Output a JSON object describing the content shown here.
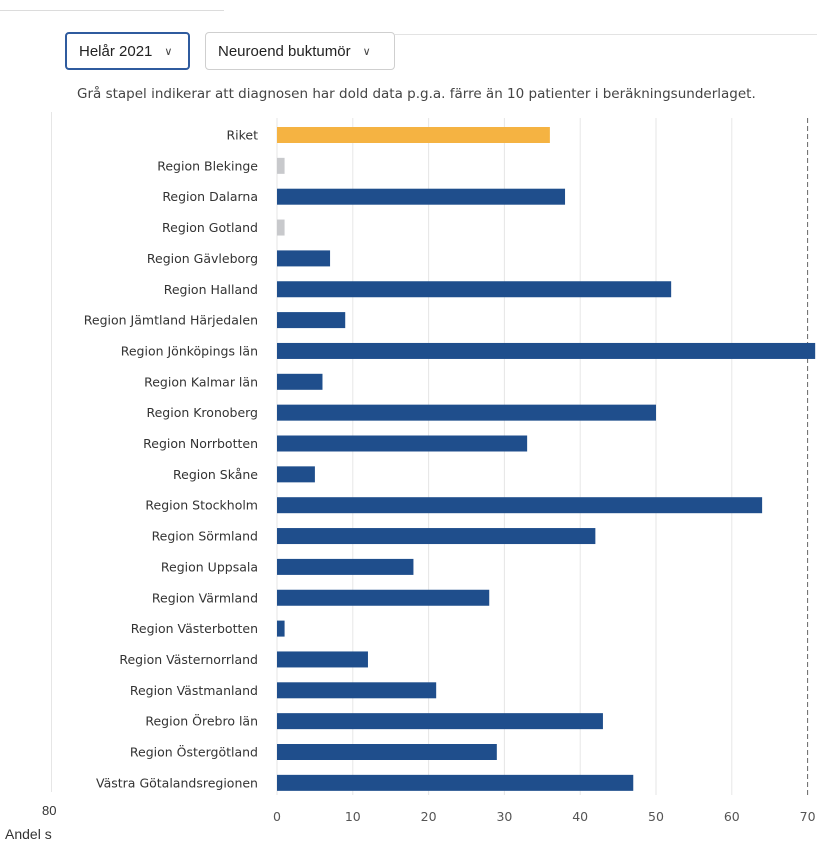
{
  "filters": {
    "period": "Helår 2021",
    "diagnosis": "Neuroend buktumör"
  },
  "note": "Grå stapel indikerar att diagnosen har dold data p.g.a. färre än 10 patienter i beräkningsunderlaget.",
  "fragments": {
    "left_number": "80",
    "left_label": "Andel s"
  },
  "colors": {
    "national": "#f5b342",
    "region": "#1f4e8c",
    "hidden": "#c8c9cc",
    "grid": "#e6e6e6",
    "reference_line": "#666666"
  },
  "chart_data": {
    "type": "bar",
    "orientation": "horizontal",
    "categories": [
      "Riket",
      "Region Blekinge",
      "Region Dalarna",
      "Region Gotland",
      "Region Gävleborg",
      "Region Halland",
      "Region Jämtland Härjedalen",
      "Region Jönköpings län",
      "Region Kalmar län",
      "Region Kronoberg",
      "Region Norrbotten",
      "Region Skåne",
      "Region Stockholm",
      "Region Sörmland",
      "Region Uppsala",
      "Region Värmland",
      "Region Västerbotten",
      "Region Västernorrland",
      "Region Västmanland",
      "Region Örebro län",
      "Region Östergötland",
      "Västra Götalandsregionen"
    ],
    "values": [
      36,
      1,
      38,
      1,
      7,
      52,
      9,
      71,
      6,
      50,
      33,
      5,
      64,
      42,
      18,
      28,
      1,
      12,
      21,
      43,
      29,
      47
    ],
    "bar_kind": [
      "national",
      "hidden",
      "region",
      "hidden",
      "region",
      "region",
      "region",
      "region",
      "region",
      "region",
      "region",
      "region",
      "region",
      "region",
      "region",
      "region",
      "region",
      "region",
      "region",
      "region",
      "region",
      "region"
    ],
    "xticks": [
      "0",
      "10",
      "20",
      "30",
      "40",
      "50",
      "60",
      "70"
    ],
    "xlim": [
      0,
      71
    ],
    "reference_line_x": 70,
    "grid": true,
    "title": "",
    "xlabel": "",
    "ylabel": ""
  }
}
